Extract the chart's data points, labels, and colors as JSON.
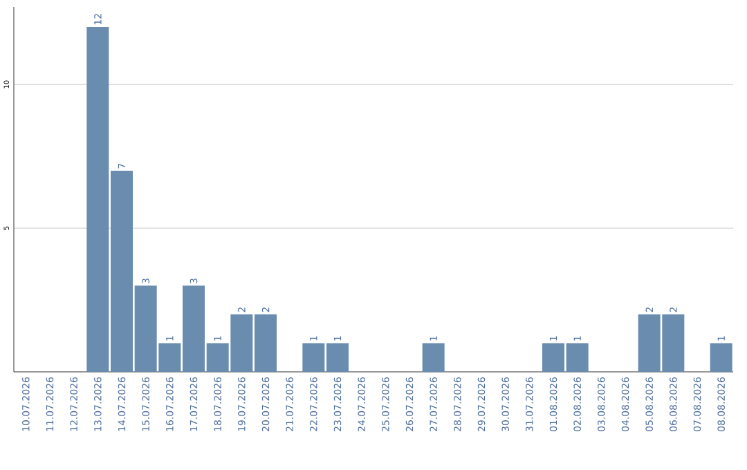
{
  "chart_data": {
    "type": "bar",
    "categories": [
      "10.07.2026",
      "11.07.2026",
      "12.07.2026",
      "13.07.2026",
      "14.07.2026",
      "15.07.2026",
      "16.07.2026",
      "17.07.2026",
      "18.07.2026",
      "19.07.2026",
      "20.07.2026",
      "21.07.2026",
      "22.07.2026",
      "23.07.2026",
      "24.07.2026",
      "25.07.2026",
      "26.07.2026",
      "27.07.2026",
      "28.07.2026",
      "29.07.2026",
      "30.07.2026",
      "31.07.2026",
      "01.08.2026",
      "02.08.2026",
      "03.08.2026",
      "04.08.2026",
      "05.08.2026",
      "06.08.2026",
      "07.08.2026",
      "08.08.2026"
    ],
    "values": [
      0,
      0,
      0,
      12,
      7,
      3,
      1,
      3,
      1,
      2,
      2,
      0,
      1,
      1,
      0,
      0,
      0,
      1,
      0,
      0,
      0,
      0,
      1,
      1,
      0,
      0,
      2,
      2,
      0,
      1
    ],
    "value_labels": [
      null,
      null,
      null,
      "12",
      "7",
      "3",
      "1",
      "3",
      "1",
      "2",
      "2",
      null,
      "1",
      "1",
      null,
      null,
      null,
      "1",
      null,
      null,
      null,
      null,
      "1",
      "1",
      null,
      null,
      "2",
      "2",
      null,
      "1"
    ],
    "color": "#6a8caf",
    "ylim": [
      0,
      12.7
    ],
    "yticks": [
      5,
      10
    ],
    "grid": "y"
  }
}
